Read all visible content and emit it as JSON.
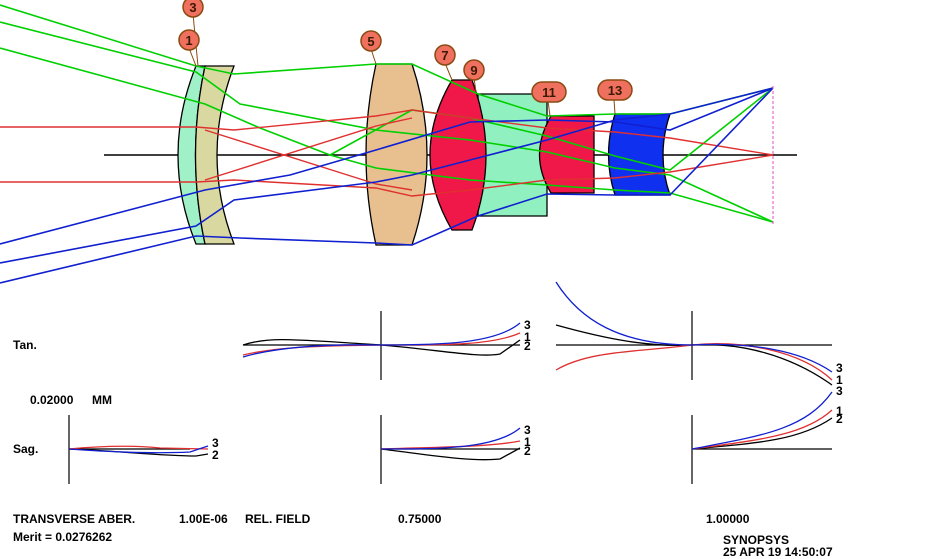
{
  "surface_labels": [
    "3",
    "1",
    "5",
    "7",
    "9",
    "11",
    "13"
  ],
  "plot_labels": {
    "tan": "Tan.",
    "sag": "Sag.",
    "scale_value": "0.02000",
    "scale_unit": "MM"
  },
  "curve_labels": [
    "3",
    "1",
    "2"
  ],
  "footer": {
    "transverse": "TRANSVERSE ABER.",
    "wavelength": "1.00E-06",
    "rel_field": "REL. FIELD",
    "field_1": "0.75000",
    "field_2": "1.00000",
    "merit": "Merit = 0.0276262",
    "program": "SYNOPSYS",
    "timestamp": "25 APR 19  14:50:07"
  },
  "colors": {
    "ray_green": "#00d000",
    "ray_red": "#e03030",
    "ray_blue": "#1020d0",
    "lens_1": "#a0f0c8",
    "lens_2": "#d8d8a0",
    "lens_5": "#e8c090",
    "lens_7": "#f01848",
    "lens_9": "#90f0c0",
    "lens_11": "#f01848",
    "lens_13": "#1030f0",
    "badge": "#f07060"
  }
}
